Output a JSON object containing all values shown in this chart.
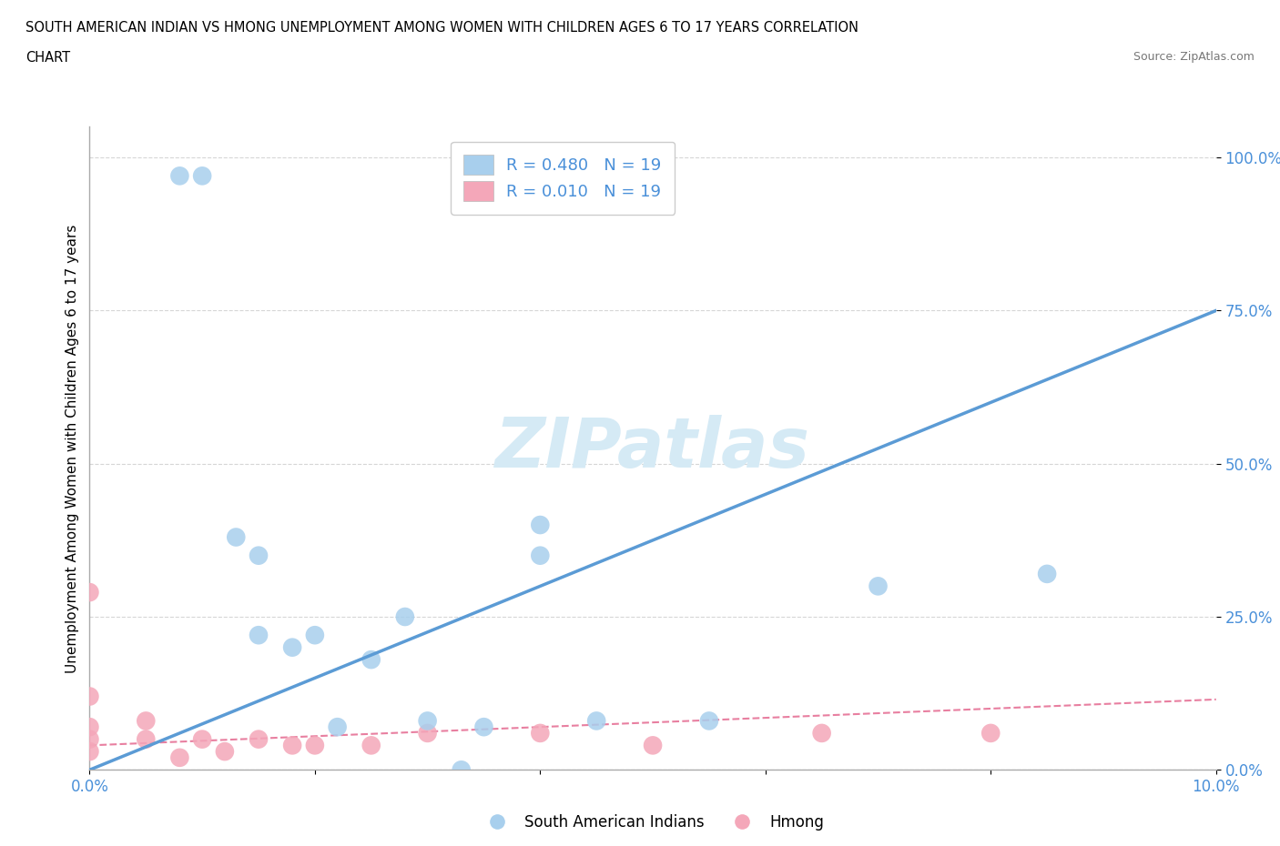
{
  "title_line1": "SOUTH AMERICAN INDIAN VS HMONG UNEMPLOYMENT AMONG WOMEN WITH CHILDREN AGES 6 TO 17 YEARS CORRELATION",
  "title_line2": "CHART",
  "source": "Source: ZipAtlas.com",
  "ylabel": "Unemployment Among Women with Children Ages 6 to 17 years",
  "xlim": [
    0.0,
    0.1
  ],
  "ylim": [
    0.0,
    1.05
  ],
  "yticks": [
    0.0,
    0.25,
    0.5,
    0.75,
    1.0
  ],
  "ytick_labels": [
    "0.0%",
    "25.0%",
    "50.0%",
    "75.0%",
    "100.0%"
  ],
  "xticks": [
    0.0,
    0.02,
    0.04,
    0.06,
    0.08,
    0.1
  ],
  "xtick_labels": [
    "0.0%",
    "",
    "",
    "",
    "",
    "10.0%"
  ],
  "R_blue": 0.48,
  "N_blue": 19,
  "R_pink": 0.01,
  "N_pink": 19,
  "blue_color": "#A8CFED",
  "pink_color": "#F4A7B9",
  "blue_line_color": "#5B9BD5",
  "pink_line_color": "#E87FA0",
  "watermark": "ZIPatlas",
  "watermark_color": "#D5EAF5",
  "sa_x": [
    0.008,
    0.01,
    0.013,
    0.015,
    0.015,
    0.018,
    0.02,
    0.022,
    0.025,
    0.028,
    0.03,
    0.033,
    0.035,
    0.04,
    0.04,
    0.045,
    0.055,
    0.07,
    0.085
  ],
  "sa_y": [
    0.97,
    0.97,
    0.38,
    0.35,
    0.22,
    0.2,
    0.22,
    0.07,
    0.18,
    0.25,
    0.08,
    0.0,
    0.07,
    0.35,
    0.4,
    0.08,
    0.08,
    0.3,
    0.32
  ],
  "hmong_x": [
    0.0,
    0.0,
    0.0,
    0.0,
    0.0,
    0.005,
    0.005,
    0.008,
    0.01,
    0.012,
    0.015,
    0.018,
    0.02,
    0.025,
    0.03,
    0.04,
    0.05,
    0.065,
    0.08
  ],
  "hmong_y": [
    0.29,
    0.12,
    0.07,
    0.05,
    0.03,
    0.05,
    0.08,
    0.02,
    0.05,
    0.03,
    0.05,
    0.04,
    0.04,
    0.04,
    0.06,
    0.06,
    0.04,
    0.06,
    0.06
  ],
  "blue_trendline_x": [
    0.0,
    0.1
  ],
  "blue_trendline_y": [
    0.0,
    0.75
  ],
  "pink_trendline_x": [
    0.0,
    0.1
  ],
  "pink_trendline_y": [
    0.04,
    0.115
  ]
}
